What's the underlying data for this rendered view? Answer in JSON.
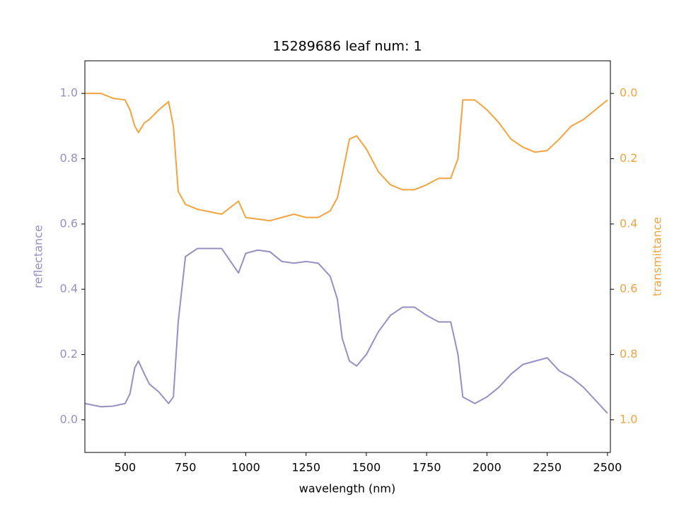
{
  "chart_data": {
    "type": "line",
    "title": "15289686 leaf num: 1",
    "x_label": "wavelength (nm)",
    "y_label": "reflectance",
    "y2_label": "transmittance",
    "x": [
      333,
      400,
      450,
      500,
      520,
      540,
      555,
      580,
      600,
      640,
      680,
      700,
      720,
      750,
      800,
      900,
      970,
      1000,
      1050,
      1100,
      1150,
      1200,
      1250,
      1300,
      1350,
      1380,
      1400,
      1430,
      1460,
      1500,
      1550,
      1600,
      1650,
      1700,
      1750,
      1800,
      1850,
      1880,
      1900,
      1950,
      2000,
      2050,
      2100,
      2150,
      2200,
      2250,
      2300,
      2350,
      2400,
      2450,
      2500
    ],
    "series": [
      {
        "name": "reflectance",
        "color": "#998ec3",
        "axis": "y",
        "values": [
          0.05,
          0.04,
          0.042,
          0.05,
          0.08,
          0.16,
          0.18,
          0.14,
          0.11,
          0.085,
          0.05,
          0.07,
          0.3,
          0.5,
          0.525,
          0.525,
          0.45,
          0.51,
          0.52,
          0.515,
          0.485,
          0.48,
          0.485,
          0.48,
          0.44,
          0.37,
          0.25,
          0.18,
          0.165,
          0.2,
          0.27,
          0.32,
          0.345,
          0.345,
          0.32,
          0.3,
          0.3,
          0.2,
          0.07,
          0.05,
          0.07,
          0.1,
          0.14,
          0.17,
          0.18,
          0.19,
          0.15,
          0.13,
          0.1,
          0.06,
          0.02
        ]
      },
      {
        "name": "transmittance",
        "color": "#f1a340",
        "axis": "y2",
        "values": [
          0.0,
          0.0,
          0.015,
          0.02,
          0.05,
          0.1,
          0.12,
          0.09,
          0.08,
          0.05,
          0.025,
          0.1,
          0.3,
          0.34,
          0.355,
          0.37,
          0.33,
          0.38,
          0.385,
          0.39,
          0.38,
          0.37,
          0.38,
          0.38,
          0.36,
          0.32,
          0.25,
          0.14,
          0.13,
          0.17,
          0.24,
          0.28,
          0.295,
          0.295,
          0.28,
          0.26,
          0.26,
          0.2,
          0.02,
          0.02,
          0.05,
          0.09,
          0.14,
          0.165,
          0.18,
          0.175,
          0.14,
          0.1,
          0.08,
          0.05,
          0.02
        ]
      }
    ],
    "xlim": [
      333,
      2512
    ],
    "xticks": [
      500,
      750,
      1000,
      1250,
      1500,
      1750,
      2000,
      2250,
      2500
    ],
    "ylim": [
      -0.1,
      1.1
    ],
    "yticks": [
      {
        "value": 0,
        "label": "0.0"
      },
      0.2,
      0.4,
      0.6,
      0.8,
      {
        "value": 1,
        "label": "1.0"
      }
    ],
    "y2lim": [
      1.1,
      -0.1
    ],
    "y2ticks": [
      {
        "value": 0,
        "label": "0.0"
      },
      0.2,
      0.4,
      0.6,
      0.8,
      {
        "value": 1,
        "label": "1.0"
      }
    ],
    "grid": false
  }
}
